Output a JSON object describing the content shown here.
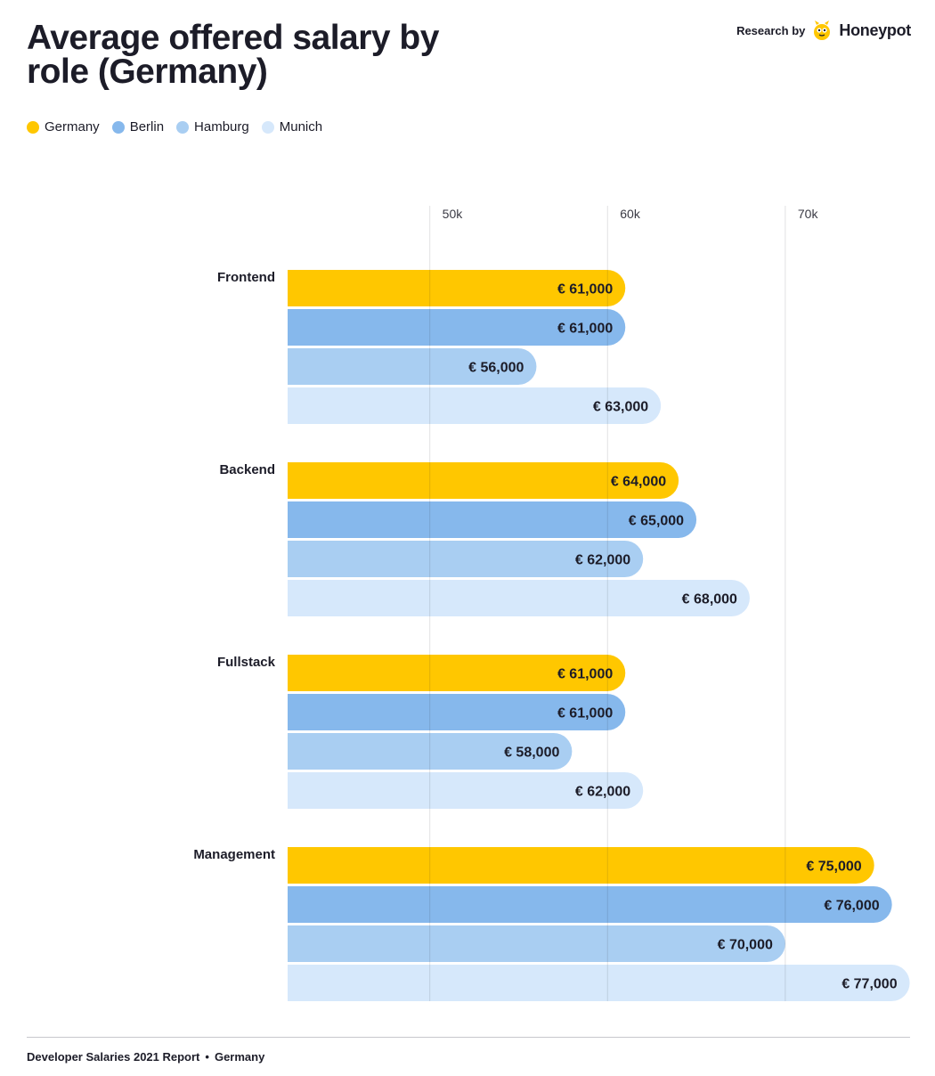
{
  "title": "Average offered salary by role (Germany)",
  "brand": {
    "prefix": "Research by",
    "name": "Honeypot"
  },
  "legend": [
    {
      "label": "Germany",
      "color": "#FFC700"
    },
    {
      "label": "Berlin",
      "color": "#86B8EC"
    },
    {
      "label": "Hamburg",
      "color": "#A9CEF2"
    },
    {
      "label": "Munich",
      "color": "#D6E8FB"
    }
  ],
  "chart_data": {
    "type": "bar",
    "orientation": "horizontal",
    "title": "Average offered salary by role (Germany)",
    "categories": [
      "Frontend",
      "Backend",
      "Fullstack",
      "Management"
    ],
    "series": [
      {
        "name": "Germany",
        "color": "#FFC700",
        "values": [
          61000,
          64000,
          61000,
          75000
        ],
        "labels": [
          "€ 61,000",
          "€ 64,000",
          "€ 61,000",
          "€ 75,000"
        ]
      },
      {
        "name": "Berlin",
        "color": "#86B8EC",
        "values": [
          61000,
          65000,
          61000,
          76000
        ],
        "labels": [
          "€ 61,000",
          "€ 65,000",
          "€ 61,000",
          "€ 76,000"
        ]
      },
      {
        "name": "Hamburg",
        "color": "#A9CEF2",
        "values": [
          56000,
          62000,
          58000,
          70000
        ],
        "labels": [
          "€ 56,000",
          "€ 62,000",
          "€ 58,000",
          "€ 70,000"
        ]
      },
      {
        "name": "Munich",
        "color": "#D6E8FB",
        "values": [
          63000,
          68000,
          62000,
          77000
        ],
        "labels": [
          "€ 63,000",
          "€ 68,000",
          "€ 62,000",
          "€ 77,000"
        ]
      }
    ],
    "ticks": [
      {
        "value": 50000,
        "label": "50k"
      },
      {
        "value": 60000,
        "label": "60k"
      },
      {
        "value": 70000,
        "label": "70k"
      }
    ],
    "xlim": [
      42000,
      77000
    ],
    "xlabel": "",
    "ylabel": "",
    "grid": true
  },
  "footer": {
    "report": "Developer Salaries 2021 Report",
    "separator": "•",
    "country": "Germany"
  }
}
